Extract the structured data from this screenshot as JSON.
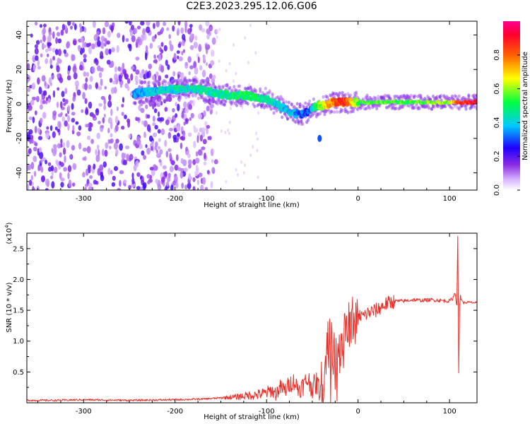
{
  "title": "C2E3.2023.295.12.06.G06",
  "chart_data": [
    {
      "type": "heatmap",
      "xlabel": "Height of straight line (km)",
      "ylabel": "Frequency (Hz)",
      "xlim": [
        -362,
        130
      ],
      "ylim": [
        -50,
        48
      ],
      "xticks": [
        -300,
        -200,
        -100,
        0,
        100
      ],
      "yticks": [
        -40,
        -20,
        0,
        20,
        40
      ],
      "colorbar": {
        "label": "Normalized spectral amplitude",
        "range": [
          0,
          1
        ],
        "ticks": [
          0.0,
          0.2,
          0.4,
          0.6,
          0.8
        ],
        "tick_labels": [
          "0.0",
          "0.2",
          "0.4",
          "0.6",
          "0.8"
        ],
        "colormap": [
          "#ffffff",
          "#8a2be2",
          "#1e00ff",
          "#00c8ff",
          "#00ff40",
          "#ffff00",
          "#ff3000",
          "#ff0090"
        ]
      },
      "noise_region_x": [
        -362,
        -155
      ],
      "ridge": {
        "x": [
          -245,
          -230,
          -215,
          -200,
          -185,
          -170,
          -155,
          -140,
          -125,
          -110,
          -100,
          -90,
          -80,
          -72,
          -65,
          -60,
          -56,
          -52,
          -48,
          -44,
          -40,
          -35,
          -30,
          -25,
          -20,
          -15,
          -10,
          0,
          20,
          50,
          80,
          100,
          110,
          130
        ],
        "y": [
          6,
          7,
          8,
          8.5,
          8.5,
          8,
          6,
          5,
          5,
          4,
          3,
          0,
          -3,
          -5,
          -6,
          -6,
          -5,
          -3,
          -2,
          -1,
          -1,
          -1,
          1,
          1,
          1,
          1,
          1,
          1,
          1,
          1,
          1,
          1,
          1,
          1
        ],
        "amplitude": [
          0.35,
          0.38,
          0.4,
          0.42,
          0.42,
          0.45,
          0.45,
          0.48,
          0.5,
          0.48,
          0.45,
          0.4,
          0.38,
          0.36,
          0.33,
          0.3,
          0.3,
          0.35,
          0.45,
          0.55,
          0.6,
          0.7,
          0.75,
          0.8,
          0.85,
          0.85,
          0.8,
          0.55,
          0.55,
          0.55,
          0.58,
          0.6,
          0.85,
          0.9
        ]
      },
      "blob": {
        "x": -42,
        "y": -20,
        "amplitude": 0.3
      }
    },
    {
      "type": "line",
      "xlabel": "Height of straight line (km)",
      "ylabel": "SNR (10 * v/v)",
      "scale_label": "(x10",
      "scale_exponent": "4",
      "scale_suffix": ")",
      "xlim": [
        -362,
        130
      ],
      "ylim": [
        0,
        2.75
      ],
      "xticks": [
        -300,
        -200,
        -100,
        0,
        100
      ],
      "yticks": [
        0.5,
        1.0,
        1.5,
        2.0,
        2.5
      ],
      "ytick_labels": [
        "0.5",
        "1.0",
        "1.5",
        "2.0",
        "2.5"
      ],
      "color": "#e8302a",
      "series": [
        {
          "x": [
            -362,
            -330,
            -300,
            -250,
            -200,
            -170,
            -150,
            -130,
            -120,
            -110,
            -100,
            -95,
            -90,
            -85,
            -80,
            -75,
            -70,
            -65,
            -60,
            -55,
            -50,
            -45,
            -42,
            -40,
            -38,
            -36,
            -34,
            -33,
            -32,
            -31,
            -30,
            -29,
            -28,
            -27,
            -26,
            -25,
            -24,
            -23,
            -22,
            -20,
            -18,
            -16,
            -14,
            -12,
            -10,
            -8,
            -6,
            -4,
            -2,
            0,
            3,
            6,
            10,
            15,
            20,
            25,
            30,
            40,
            50,
            60,
            70,
            80,
            90,
            100,
            104,
            106,
            108,
            109,
            110,
            111,
            112,
            115,
            120,
            130
          ],
          "y": [
            0.04,
            0.04,
            0.05,
            0.04,
            0.05,
            0.06,
            0.08,
            0.1,
            0.12,
            0.13,
            0.16,
            0.2,
            0.15,
            0.25,
            0.2,
            0.3,
            0.35,
            0.22,
            0.28,
            0.38,
            0.25,
            0.32,
            0.2,
            0.35,
            0.3,
            0.6,
            0.95,
            1.05,
            0.5,
            1.2,
            0.25,
            1.5,
            0.9,
            0.3,
            1.1,
            0.2,
            1.1,
            0.05,
            1.25,
            0.7,
            1.2,
            0.9,
            1.3,
            1.0,
            1.3,
            1.1,
            1.4,
            1.2,
            1.38,
            1.35,
            1.42,
            1.4,
            1.45,
            1.48,
            1.5,
            1.55,
            1.6,
            1.65,
            1.65,
            1.67,
            1.66,
            1.67,
            1.66,
            1.65,
            1.7,
            1.8,
            1.6,
            2.75,
            0.45,
            1.6,
            1.72,
            1.62,
            1.63,
            1.62
          ]
        }
      ]
    }
  ]
}
